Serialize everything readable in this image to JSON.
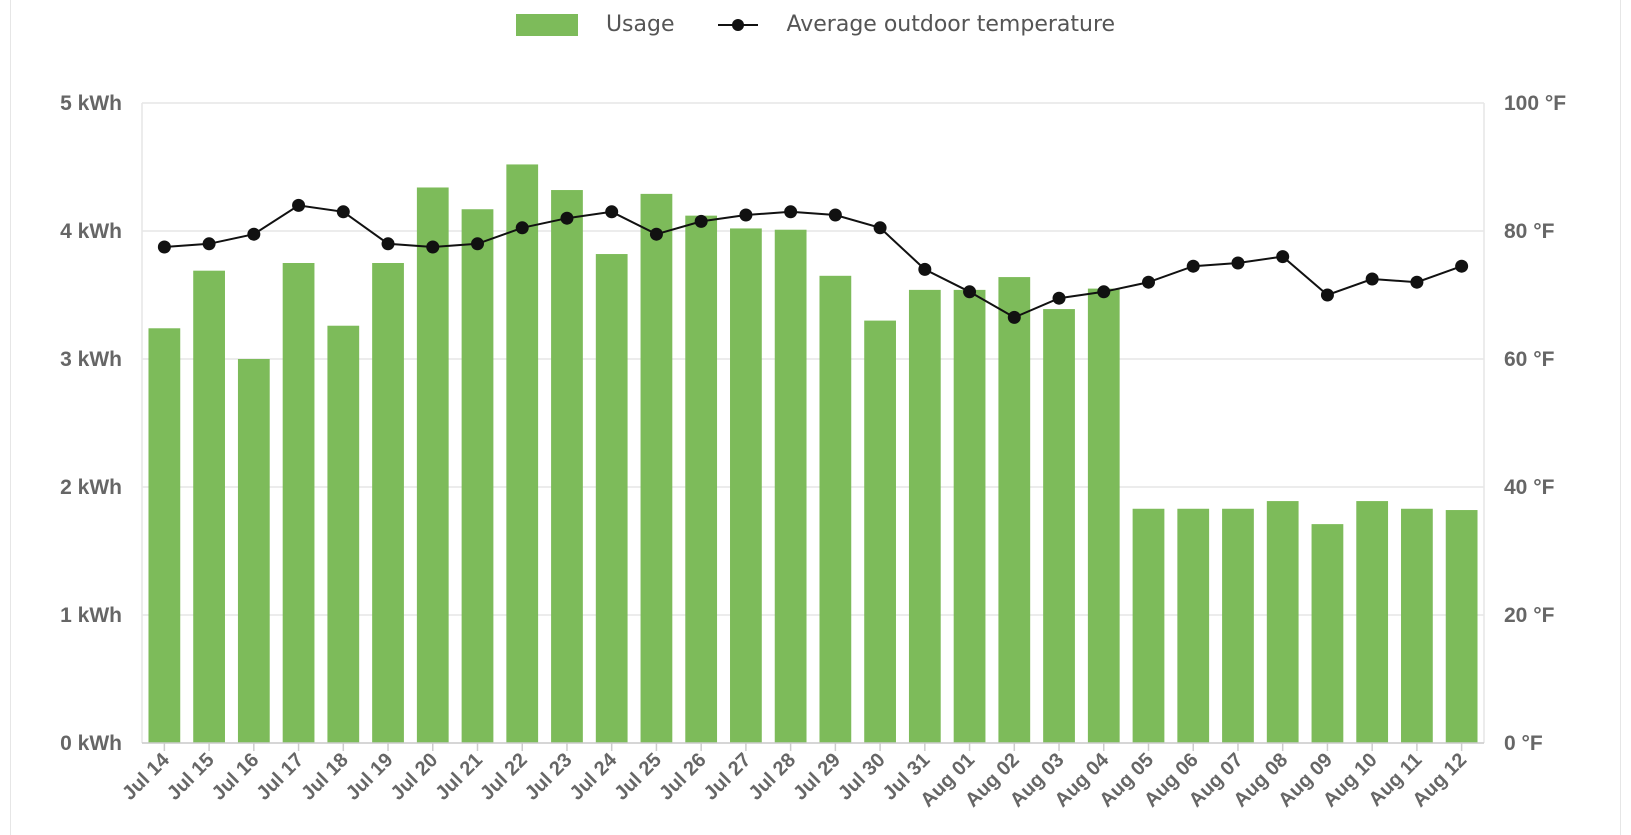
{
  "chart_data": {
    "type": "bar",
    "categories": [
      "Jul 14",
      "Jul 15",
      "Jul 16",
      "Jul 17",
      "Jul 18",
      "Jul 19",
      "Jul 20",
      "Jul 21",
      "Jul 22",
      "Jul 23",
      "Jul 24",
      "Jul 25",
      "Jul 26",
      "Jul 27",
      "Jul 28",
      "Jul 29",
      "Jul 30",
      "Jul 31",
      "Aug 01",
      "Aug 02",
      "Aug 03",
      "Aug 04",
      "Aug 05",
      "Aug 06",
      "Aug 07",
      "Aug 08",
      "Aug 09",
      "Aug 10",
      "Aug 11",
      "Aug 12"
    ],
    "series": [
      {
        "name": "Usage",
        "type": "bar",
        "axis": "left",
        "color": "#7dbb5a",
        "values": [
          3.24,
          3.69,
          3.0,
          3.75,
          3.26,
          3.75,
          4.34,
          4.17,
          4.52,
          4.32,
          3.82,
          4.29,
          4.12,
          4.02,
          4.01,
          3.65,
          3.3,
          3.54,
          3.54,
          3.64,
          3.39,
          3.55,
          1.83,
          1.83,
          1.83,
          1.89,
          1.71,
          1.89,
          1.83,
          1.82
        ]
      },
      {
        "name": "Average outdoor temperature",
        "type": "line",
        "axis": "right",
        "color": "#111111",
        "values": [
          77.5,
          78,
          79.5,
          84,
          83,
          78,
          77.5,
          78,
          80.5,
          82,
          83,
          79.5,
          81.5,
          82.5,
          83,
          82.5,
          80.5,
          74,
          70.5,
          66.5,
          69.5,
          70.5,
          72,
          74.5,
          75,
          76,
          70,
          72.5,
          72,
          74.5
        ]
      }
    ],
    "y_left": {
      "min": 0,
      "max": 5,
      "ticks": [
        "0 kWh",
        "1 kWh",
        "2 kWh",
        "3 kWh",
        "4 kWh",
        "5 kWh"
      ]
    },
    "y_right": {
      "min": 0,
      "max": 100,
      "ticks": [
        "0 °F",
        "20 °F",
        "40 °F",
        "60 °F",
        "80 °F",
        "100 °F"
      ]
    },
    "grid": true,
    "legend_position": "top-center"
  }
}
